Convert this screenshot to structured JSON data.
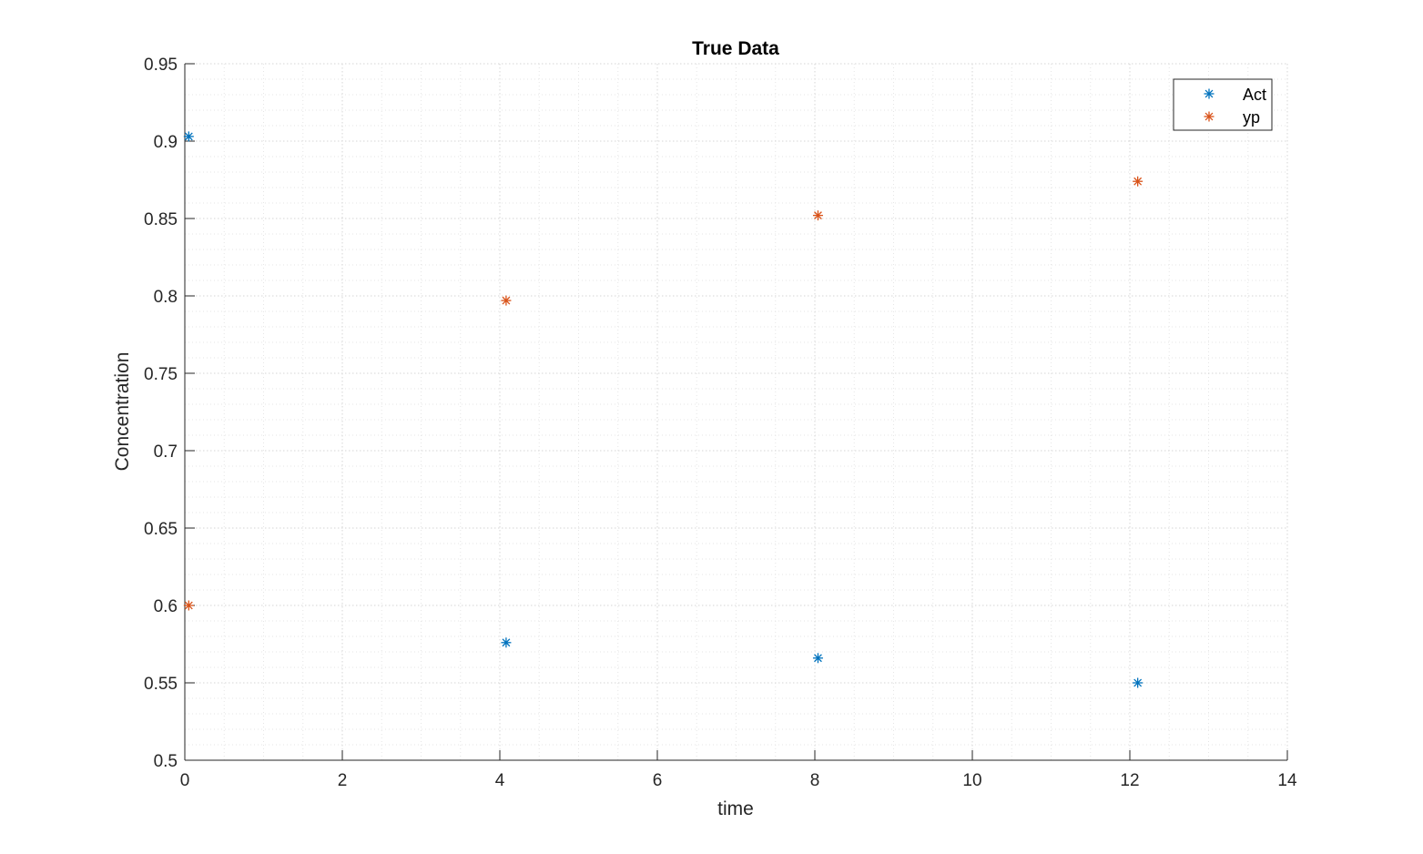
{
  "chart_data": {
    "type": "scatter",
    "title": "True Data",
    "xlabel": "time",
    "ylabel": "Concentration",
    "xlim": [
      0,
      14
    ],
    "ylim": [
      0.5,
      0.95
    ],
    "xticks": [
      "0",
      "2",
      "4",
      "6",
      "8",
      "10",
      "12",
      "14"
    ],
    "yticks": [
      "0.5",
      "0.55",
      "0.6",
      "0.65",
      "0.7",
      "0.75",
      "0.8",
      "0.85",
      "0.9",
      "0.95"
    ],
    "grid": true,
    "minor_grid": true,
    "legend_position": "top-right",
    "marker": "asterisk",
    "series": [
      {
        "name": "Act",
        "color": "#0072BD",
        "x": [
          0.05,
          4.08,
          8.04,
          12.1
        ],
        "y": [
          0.903,
          0.576,
          0.566,
          0.55
        ]
      },
      {
        "name": "yp",
        "color": "#D95319",
        "x": [
          0.05,
          4.08,
          8.04,
          12.1
        ],
        "y": [
          0.6,
          0.797,
          0.852,
          0.874
        ]
      }
    ]
  }
}
